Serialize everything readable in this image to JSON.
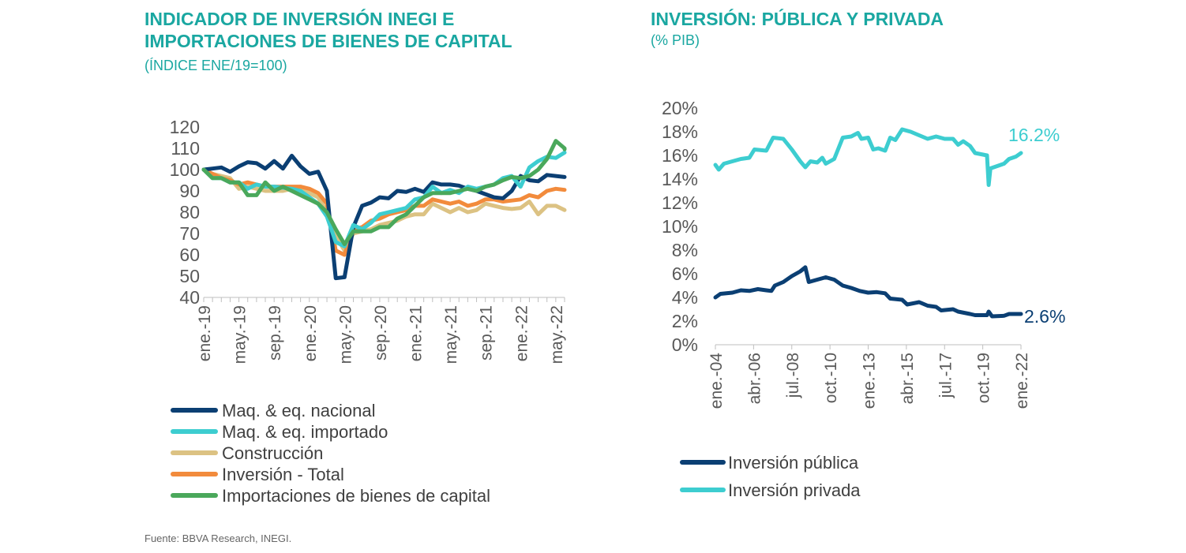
{
  "colors": {
    "title": "#1aa7a1",
    "nacional": "#0b3f73",
    "importado": "#3dcdd0",
    "construccion": "#dcc283",
    "total": "#f28b3c",
    "importaciones": "#4aa85b",
    "publica": "#0b3f73",
    "privada": "#3dcdd0"
  },
  "footer": {
    "source": "Fuente: BBVA Research, INEGI."
  },
  "chart_data": [
    {
      "type": "line",
      "title_line1": "INDICADOR DE INVERSIÓN INEGI E",
      "title_line2": "IMPORTACIONES DE BIENES DE CAPITAL",
      "subtitle": "(ÍNDICE ENE/19=100)",
      "ylim": [
        40,
        120
      ],
      "yticks": [
        "120",
        "110",
        "100",
        "90",
        "80",
        "70",
        "60",
        "50",
        "40"
      ],
      "x_tick_labels": [
        "ene.-19",
        "may.-19",
        "sep.-19",
        "ene.-20",
        "may.-20",
        "sep.-20",
        "ene.-21",
        "may.-21",
        "sep.-21",
        "ene.-22",
        "may.-22"
      ],
      "legend_position": "bottom",
      "series": [
        {
          "name": "Maq. & eq. nacional",
          "color": "#0b3f73",
          "values": [
            100,
            100.5,
            101,
            99,
            101.5,
            103.5,
            103,
            100.5,
            104,
            100.5,
            106.5,
            101.5,
            98,
            99,
            90,
            49,
            49.5,
            73,
            83,
            84.5,
            87,
            86.5,
            90,
            89.5,
            91,
            89.5,
            94,
            93,
            93,
            92.5,
            91,
            90,
            88.5,
            87,
            86.5,
            90,
            97,
            95,
            94.5,
            97.5,
            97,
            96.5
          ]
        },
        {
          "name": "Maq. & eq. importado",
          "color": "#3dcdd0",
          "values": [
            100,
            96,
            96,
            94,
            94,
            91,
            93,
            92,
            92,
            91.5,
            91,
            90,
            87,
            84,
            78,
            66,
            64,
            74,
            72,
            75,
            79,
            80,
            81,
            82,
            86,
            87,
            92,
            89,
            90.5,
            89,
            92,
            91,
            92,
            93,
            96,
            97,
            92,
            101,
            104,
            106,
            105.5,
            108
          ]
        },
        {
          "name": "Construcción",
          "color": "#dcc283",
          "values": [
            100,
            98,
            97,
            96,
            91,
            92,
            91,
            90,
            90,
            90,
            91,
            91,
            89,
            87,
            80,
            69,
            62,
            70,
            71,
            72,
            74,
            75,
            76,
            78,
            79,
            79,
            84,
            82,
            80,
            82,
            80,
            81,
            84,
            83,
            82,
            81.5,
            82,
            85,
            79,
            83,
            83,
            81
          ]
        },
        {
          "name": "Inversión - Total",
          "color": "#f28b3c",
          "values": [
            100,
            98,
            96,
            95,
            93,
            94,
            93,
            92,
            92,
            92,
            92,
            92,
            91,
            89,
            84,
            62,
            60,
            72,
            73,
            76,
            77,
            79,
            80,
            81,
            83,
            83,
            86,
            85,
            84,
            85,
            83,
            84,
            86,
            86,
            85,
            85.5,
            86,
            88,
            87,
            90,
            91,
            90.5
          ]
        },
        {
          "name": "Importaciones de bienes de capital",
          "color": "#4aa85b",
          "values": [
            100,
            96,
            96,
            94,
            94,
            88,
            88,
            94,
            90,
            92,
            90,
            88,
            86,
            84,
            80,
            72,
            65,
            71,
            71,
            71,
            73,
            73,
            77,
            79,
            83,
            87,
            89,
            89,
            89,
            90,
            91,
            90,
            92,
            93,
            95,
            96.5,
            96,
            97,
            100,
            105,
            113.5,
            110,
            109.5
          ]
        }
      ]
    },
    {
      "type": "line",
      "title": "INVERSIÓN: PÚBLICA Y PRIVADA",
      "subtitle": "(% PIB)",
      "ylim": [
        0,
        20
      ],
      "yticks": [
        "20%",
        "18%",
        "16%",
        "14%",
        "12%",
        "10%",
        "8%",
        "6%",
        "4%",
        "2%",
        "0%"
      ],
      "x_tick_labels": [
        "ene.-04",
        "abr.-06",
        "jul.-08",
        "oct.-10",
        "ene.-13",
        "abr.-15",
        "jul.-17",
        "oct.-19",
        "ene.-22"
      ],
      "x_start_year": 2004,
      "x_end_year": 2022,
      "legend_position": "bottom-left",
      "series": [
        {
          "name": "Inversión pública",
          "color": "#0b3f73",
          "end_label": "2.6%",
          "points": [
            [
              2004,
              4.0
            ],
            [
              2004.3,
              4.3
            ],
            [
              2005,
              4.4
            ],
            [
              2005.5,
              4.6
            ],
            [
              2006,
              4.55
            ],
            [
              2006.5,
              4.7
            ],
            [
              2007,
              4.6
            ],
            [
              2007.3,
              4.55
            ],
            [
              2007.5,
              5.0
            ],
            [
              2008,
              5.3
            ],
            [
              2008.5,
              5.8
            ],
            [
              2009.0,
              6.2
            ],
            [
              2009.3,
              6.55
            ],
            [
              2009.5,
              5.3
            ],
            [
              2010,
              5.5
            ],
            [
              2010.5,
              5.7
            ],
            [
              2011,
              5.5
            ],
            [
              2011.5,
              5.0
            ],
            [
              2012,
              4.8
            ],
            [
              2012.5,
              4.55
            ],
            [
              2013,
              4.4
            ],
            [
              2013.5,
              4.45
            ],
            [
              2014,
              4.35
            ],
            [
              2014.3,
              3.9
            ],
            [
              2015,
              3.8
            ],
            [
              2015.3,
              3.4
            ],
            [
              2016,
              3.6
            ],
            [
              2016.5,
              3.3
            ],
            [
              2017,
              3.2
            ],
            [
              2017.3,
              2.9
            ],
            [
              2018,
              3.0
            ],
            [
              2018.3,
              2.8
            ],
            [
              2019,
              2.6
            ],
            [
              2019.3,
              2.5
            ],
            [
              2020,
              2.5
            ],
            [
              2020.1,
              2.8
            ],
            [
              2020.3,
              2.4
            ],
            [
              2021,
              2.45
            ],
            [
              2021.3,
              2.6
            ],
            [
              2022,
              2.6
            ]
          ]
        },
        {
          "name": "Inversión privada",
          "color": "#3dcdd0",
          "end_label": "16.2%",
          "points": [
            [
              2004,
              15.2
            ],
            [
              2004.2,
              14.8
            ],
            [
              2004.5,
              15.3
            ],
            [
              2005,
              15.5
            ],
            [
              2005.5,
              15.7
            ],
            [
              2006,
              15.8
            ],
            [
              2006.3,
              16.5
            ],
            [
              2007,
              16.4
            ],
            [
              2007.4,
              17.5
            ],
            [
              2008,
              17.4
            ],
            [
              2008.5,
              16.5
            ],
            [
              2009,
              15.5
            ],
            [
              2009.3,
              15.0
            ],
            [
              2009.6,
              15.5
            ],
            [
              2010,
              15.4
            ],
            [
              2010.3,
              15.8
            ],
            [
              2010.5,
              15.3
            ],
            [
              2011,
              15.7
            ],
            [
              2011.5,
              17.5
            ],
            [
              2012,
              17.6
            ],
            [
              2012.4,
              17.9
            ],
            [
              2012.6,
              17.4
            ],
            [
              2013,
              17.5
            ],
            [
              2013.3,
              16.5
            ],
            [
              2013.6,
              16.6
            ],
            [
              2014,
              16.4
            ],
            [
              2014.3,
              17.5
            ],
            [
              2014.6,
              17.3
            ],
            [
              2015,
              18.2
            ],
            [
              2015.5,
              18.0
            ],
            [
              2016,
              17.7
            ],
            [
              2016.5,
              17.4
            ],
            [
              2017,
              17.6
            ],
            [
              2017.5,
              17.4
            ],
            [
              2018,
              17.4
            ],
            [
              2018.3,
              16.9
            ],
            [
              2018.6,
              17.2
            ],
            [
              2019,
              16.8
            ],
            [
              2019.3,
              16.2
            ],
            [
              2020,
              16.0
            ],
            [
              2020.1,
              13.5
            ],
            [
              2020.2,
              14.9
            ],
            [
              2021,
              15.3
            ],
            [
              2021.3,
              15.7
            ],
            [
              2021.7,
              15.9
            ],
            [
              2022,
              16.2
            ]
          ]
        }
      ]
    }
  ]
}
